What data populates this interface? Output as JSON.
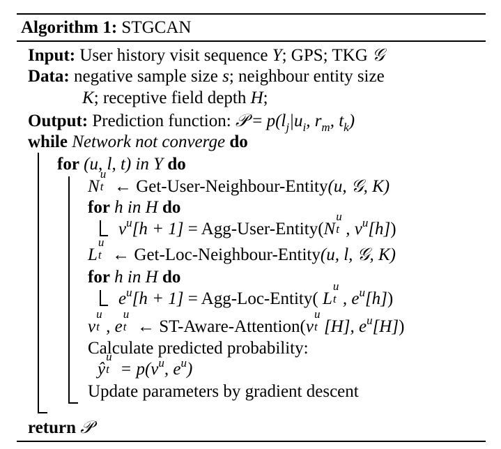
{
  "header": {
    "label": "Algorithm 1:",
    "name": "STGCAN"
  },
  "input": {
    "label": "Input:",
    "text_a": "User history visit sequence",
    "var_y": "Y",
    "text_b": "; GPS; TKG",
    "var_g": "𝒢"
  },
  "data": {
    "label": "Data:",
    "line1_a": "negative sample size",
    "var_s": "s",
    "line1_b": "; neighbour entity size",
    "var_k": "K",
    "line2_a": "; receptive field depth",
    "var_h": "H",
    "line2_b": ";"
  },
  "output": {
    "label": "Output:",
    "text": "Prediction function:",
    "formula_lhs": "𝒫",
    "formula_eq": " = ",
    "formula_rhs": "p(l",
    "sub_j": "j",
    "formula_mid": "|u",
    "sub_i": "i",
    "formula_c1": ", r",
    "sub_m": "m",
    "formula_c2": ", t",
    "sub_k": "k",
    "formula_end": ")"
  },
  "algo": {
    "while_kw": "while",
    "while_cond": "Network not converge",
    "do_kw": "do",
    "for_kw": "for",
    "for1_tuple": "(u, l, t)",
    "in_kw": "in",
    "for1_set": "Y",
    "step1_var": "N",
    "step1_arrow": " ← ",
    "step1_func": "Get-User-Neighbour-Entity",
    "step1_args": "(u, 𝒢, K)",
    "for2_var": "h",
    "for2_set": "H",
    "agg1_lhs": "v",
    "agg1_idx": "[h + 1]",
    "agg1_eq": " = ",
    "agg1_func": "Agg-User-Entity(",
    "agg1_arg1": "N",
    "agg1_sep": ", v",
    "agg1_arg2": "[h]",
    "agg1_end": ")",
    "step2_var": "L",
    "step2_func": "Get-Loc-Neighbour-Entity",
    "step2_args": "(u, l, 𝒢, K)",
    "agg2_lhs": "e",
    "agg2_func": "Agg-Loc-Entity( ",
    "agg2_arg1": "L",
    "agg2_sep": ", e",
    "att_v": "v",
    "att_sep": ", e",
    "att_func": "ST-Aware-Attention(",
    "att_arg1": "[H]",
    "att_arg2": "[H]",
    "calc_text": "Calculate predicted probability:",
    "yhat": "ŷ",
    "yhat_eq": " = p(v",
    "yhat_mid": ", e",
    "yhat_end": ")",
    "update_text": "Update parameters by gradient descent",
    "return_kw": "return",
    "return_val": "𝒫",
    "sup_u": "u",
    "sub_t": "t"
  }
}
